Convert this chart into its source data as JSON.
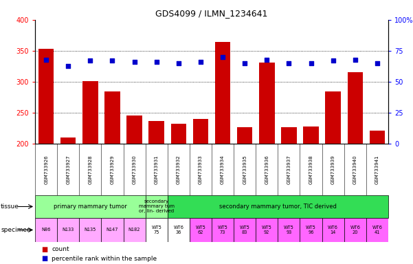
{
  "title": "GDS4099 / ILMN_1234641",
  "samples": [
    "GSM733926",
    "GSM733927",
    "GSM733928",
    "GSM733929",
    "GSM733930",
    "GSM733931",
    "GSM733932",
    "GSM733933",
    "GSM733934",
    "GSM733935",
    "GSM733936",
    "GSM733937",
    "GSM733938",
    "GSM733939",
    "GSM733940",
    "GSM733941"
  ],
  "counts": [
    353,
    210,
    301,
    284,
    246,
    237,
    233,
    240,
    364,
    227,
    331,
    227,
    228,
    284,
    316,
    221
  ],
  "percentile_ranks": [
    68,
    63,
    67,
    67,
    66,
    66,
    65,
    66,
    70,
    65,
    68,
    65,
    65,
    67,
    68,
    65
  ],
  "ylim_left": [
    200,
    400
  ],
  "ylim_right": [
    0,
    100
  ],
  "yticks_left": [
    200,
    250,
    300,
    350,
    400
  ],
  "yticks_right": [
    0,
    25,
    50,
    75,
    100
  ],
  "bar_color": "#cc0000",
  "dot_color": "#0000cc",
  "tissue_groups": [
    {
      "start": 0,
      "end": 4,
      "color": "#99ff99",
      "label": "primary mammary tumor"
    },
    {
      "start": 5,
      "end": 5,
      "color": "#99ff99",
      "label": "secondary\nmammary tum\nor, lin- derived"
    },
    {
      "start": 6,
      "end": 15,
      "color": "#33dd55",
      "label": "secondary mammary tumor, TIC derived"
    }
  ],
  "specimen_labels": [
    "N86",
    "N133",
    "N135",
    "N147",
    "N182",
    "WT5\n75",
    "WT6\n36",
    "WT5\n62",
    "WT5\n73",
    "WT5\n83",
    "WT5\n92",
    "WT5\n93",
    "WT5\n96",
    "WT6\n14",
    "WT6\n20",
    "WT6\n41"
  ],
  "specimen_colors": [
    "#ffaaff",
    "#ffaaff",
    "#ffaaff",
    "#ffaaff",
    "#ffaaff",
    "#ffffff",
    "#ffffff",
    "#ff66ff",
    "#ff66ff",
    "#ff66ff",
    "#ff66ff",
    "#ff66ff",
    "#ff66ff",
    "#ff66ff",
    "#ff66ff",
    "#ff66ff"
  ],
  "xticklabel_bg": "#d0d0d0",
  "background_color": "#ffffff",
  "legend_items": [
    {
      "color": "#cc0000",
      "label": "count"
    },
    {
      "color": "#0000cc",
      "label": "percentile rank within the sample"
    }
  ]
}
